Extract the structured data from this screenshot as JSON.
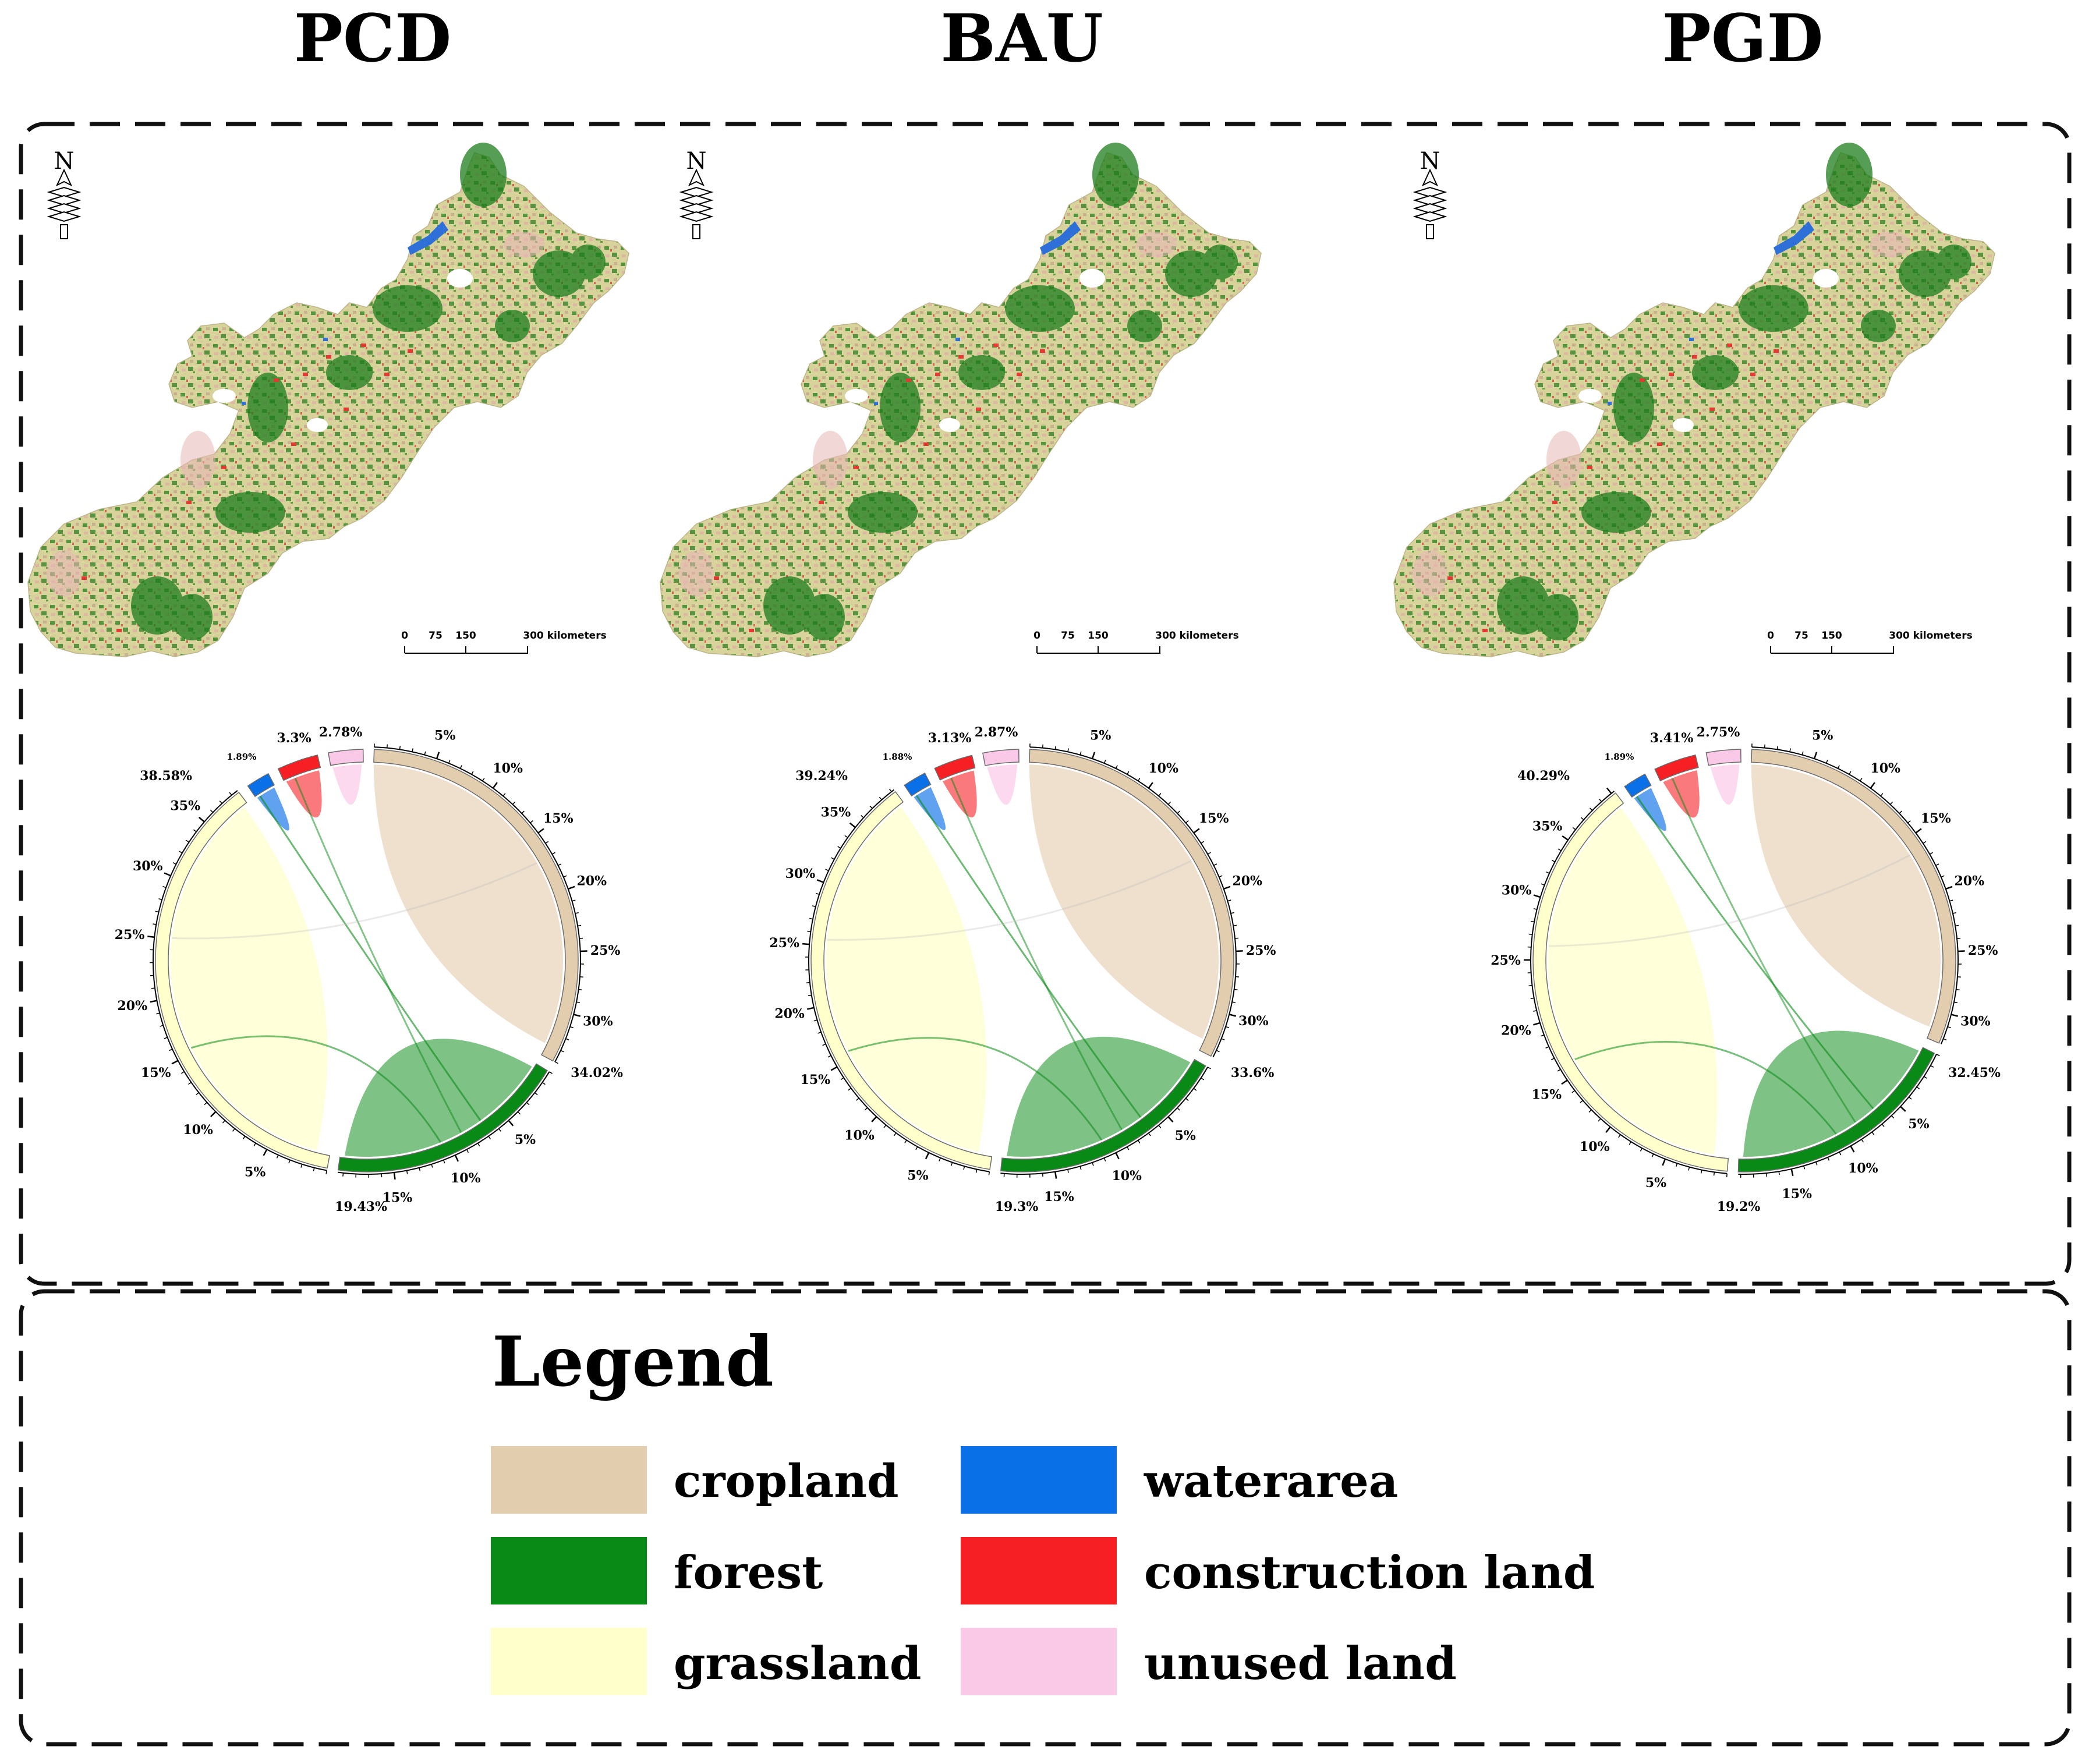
{
  "scenarios": [
    {
      "title": "PCD",
      "labels": {
        "cropland": "34.02%",
        "forest": "19.43%",
        "grassland": "38.58%",
        "waterarea": "1.89%",
        "construction": "3.3%",
        "unused": "2.78%"
      }
    },
    {
      "title": "BAU",
      "labels": {
        "cropland": "33.6%",
        "forest": "19.3%",
        "grassland": "39.24%",
        "waterarea": "1.88%",
        "construction": "3.13%",
        "unused": "2.87%"
      }
    },
    {
      "title": "PGD",
      "labels": {
        "cropland": "32.45%",
        "forest": "19.2%",
        "grassland": "40.29%",
        "waterarea": "1.89%",
        "construction": "3.41%",
        "unused": "2.75%"
      }
    }
  ],
  "tick_labels": {
    "cropland": [
      "5%",
      "10%",
      "15%",
      "20%",
      "25%",
      "30%"
    ],
    "forest": [
      "5%",
      "10%",
      "15%"
    ],
    "grassland": [
      "5%",
      "10%",
      "15%",
      "20%",
      "25%",
      "30%",
      "35%"
    ]
  },
  "chart_data": [
    {
      "type": "chord",
      "title": "PCD",
      "categories": [
        "cropland",
        "forest",
        "grassland",
        "waterarea",
        "construction land",
        "unused land"
      ],
      "values": [
        34.02,
        19.43,
        38.58,
        1.89,
        3.3,
        2.78
      ]
    },
    {
      "type": "chord",
      "title": "BAU",
      "categories": [
        "cropland",
        "forest",
        "grassland",
        "waterarea",
        "construction land",
        "unused land"
      ],
      "values": [
        33.6,
        19.3,
        39.24,
        1.88,
        3.13,
        2.87
      ]
    },
    {
      "type": "chord",
      "title": "PGD",
      "categories": [
        "cropland",
        "forest",
        "grassland",
        "waterarea",
        "construction land",
        "unused land"
      ],
      "values": [
        32.45,
        19.2,
        40.29,
        1.89,
        3.41,
        2.75
      ]
    }
  ],
  "scale_bar": {
    "labels": [
      "0",
      "75",
      "150",
      "300 kilometers"
    ]
  },
  "north_label": "N",
  "legend": {
    "title": "Legend",
    "items": [
      {
        "label": "cropland",
        "color": "#E3CDAF"
      },
      {
        "label": "forest",
        "color": "#098A16"
      },
      {
        "label": "grassland",
        "color": "#FFFFCC"
      },
      {
        "label": "waterarea",
        "color": "#0A70E8"
      },
      {
        "label": "construction land",
        "color": "#F62024"
      },
      {
        "label": "unused land",
        "color": "#FBC9E8"
      }
    ]
  },
  "colors": {
    "cropland": "#E3CDAF",
    "forest": "#098A16",
    "grassland": "#FFFFCC",
    "waterarea": "#0A70E8",
    "construction": "#F62024",
    "unused": "#FBC9E8",
    "map_base": "#D9D29A"
  }
}
